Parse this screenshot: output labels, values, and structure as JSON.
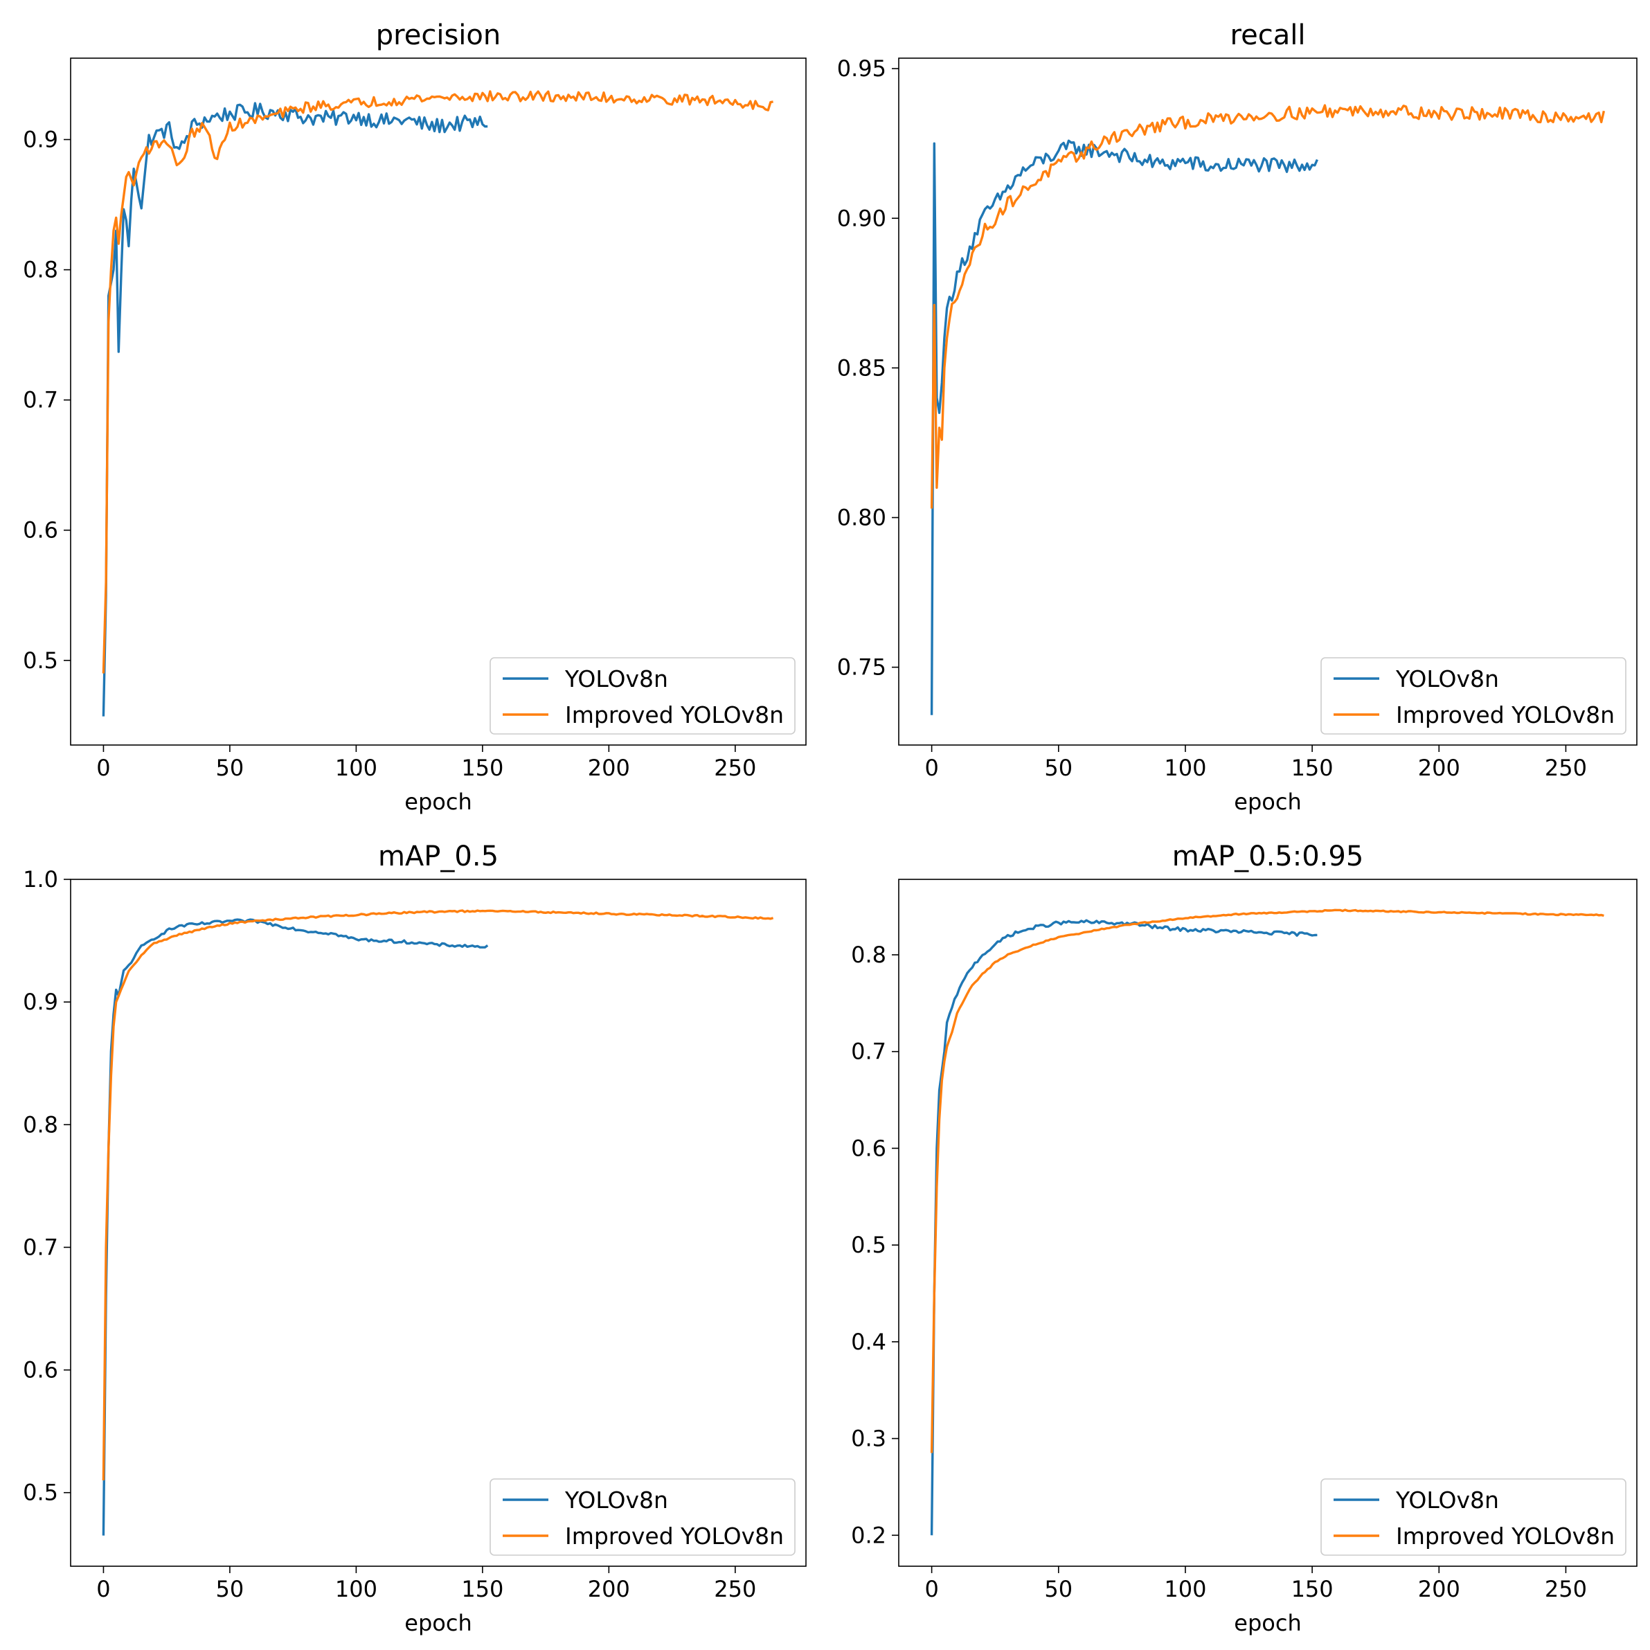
{
  "colors": {
    "yolov8n": "#1f77b4",
    "improved": "#ff7f0e",
    "axes": "#000000",
    "background": "#ffffff"
  },
  "chart_data": [
    {
      "type": "line",
      "title": "precision",
      "xlabel": "epoch",
      "ylabel": "",
      "xlim": [
        -13,
        278
      ],
      "ylim": [
        0.435,
        0.9625
      ],
      "xticks": [
        0,
        50,
        100,
        150,
        200,
        250
      ],
      "xtick_labels": [
        "0",
        "50",
        "100",
        "150",
        "200",
        "250"
      ],
      "yticks": [
        0.5,
        0.6,
        0.7,
        0.8,
        0.9
      ],
      "ytick_labels": [
        "0.5",
        "0.6",
        "0.7",
        "0.8",
        "0.9"
      ],
      "legend": "bottom-right",
      "series": [
        {
          "name": "YOLOv8n",
          "color": "#1f77b4",
          "end_epoch": 152,
          "x": [
            0,
            1,
            2,
            3,
            4,
            5,
            6,
            8,
            10,
            12,
            15,
            18,
            22,
            26,
            30,
            35,
            40,
            45,
            50,
            60,
            70,
            80,
            90,
            100,
            110,
            120,
            130,
            140,
            152
          ],
          "y": [
            0.457,
            0.55,
            0.78,
            0.79,
            0.8,
            0.83,
            0.737,
            0.85,
            0.82,
            0.88,
            0.85,
            0.9,
            0.905,
            0.908,
            0.89,
            0.91,
            0.915,
            0.918,
            0.92,
            0.922,
            0.921,
            0.917,
            0.916,
            0.918,
            0.914,
            0.915,
            0.91,
            0.912,
            0.913
          ],
          "noise": 0.006
        },
        {
          "name": "Improved YOLOv8n",
          "color": "#ff7f0e",
          "end_epoch": 265,
          "x": [
            0,
            1,
            2,
            3,
            4,
            5,
            6,
            8,
            10,
            12,
            15,
            20,
            25,
            30,
            35,
            40,
            45,
            50,
            60,
            70,
            80,
            100,
            120,
            140,
            160,
            180,
            200,
            220,
            240,
            255,
            265
          ],
          "y": [
            0.49,
            0.56,
            0.76,
            0.8,
            0.83,
            0.84,
            0.82,
            0.86,
            0.875,
            0.865,
            0.89,
            0.895,
            0.9,
            0.878,
            0.905,
            0.91,
            0.885,
            0.91,
            0.915,
            0.92,
            0.925,
            0.928,
            0.931,
            0.933,
            0.933,
            0.933,
            0.932,
            0.931,
            0.93,
            0.928,
            0.926
          ],
          "noise": 0.004
        }
      ]
    },
    {
      "type": "line",
      "title": "recall",
      "xlabel": "epoch",
      "ylabel": "",
      "xlim": [
        -13,
        278
      ],
      "ylim": [
        0.724,
        0.9535
      ],
      "xticks": [
        0,
        50,
        100,
        150,
        200,
        250
      ],
      "xtick_labels": [
        "0",
        "50",
        "100",
        "150",
        "200",
        "250"
      ],
      "yticks": [
        0.75,
        0.8,
        0.85,
        0.9,
        0.95
      ],
      "ytick_labels": [
        "0.75",
        "0.80",
        "0.85",
        "0.90",
        "0.95"
      ],
      "legend": "bottom-right",
      "series": [
        {
          "name": "YOLOv8n",
          "color": "#1f77b4",
          "end_epoch": 152,
          "x": [
            0,
            1,
            2,
            3,
            4,
            5,
            6,
            8,
            10,
            12,
            15,
            20,
            25,
            30,
            35,
            40,
            45,
            50,
            55,
            60,
            70,
            80,
            90,
            100,
            110,
            120,
            130,
            140,
            152
          ],
          "y": [
            0.734,
            0.925,
            0.84,
            0.835,
            0.845,
            0.86,
            0.87,
            0.875,
            0.88,
            0.885,
            0.89,
            0.9,
            0.905,
            0.91,
            0.915,
            0.918,
            0.92,
            0.922,
            0.924,
            0.923,
            0.922,
            0.92,
            0.918,
            0.919,
            0.917,
            0.918,
            0.918,
            0.917,
            0.919
          ],
          "noise": 0.0025
        },
        {
          "name": "Improved YOLOv8n",
          "color": "#ff7f0e",
          "end_epoch": 265,
          "x": [
            0,
            1,
            2,
            3,
            4,
            5,
            6,
            8,
            10,
            12,
            15,
            20,
            25,
            30,
            35,
            40,
            45,
            50,
            60,
            70,
            80,
            90,
            100,
            120,
            140,
            160,
            180,
            200,
            220,
            240,
            255,
            265
          ],
          "y": [
            0.803,
            0.871,
            0.81,
            0.83,
            0.826,
            0.85,
            0.86,
            0.87,
            0.875,
            0.88,
            0.885,
            0.895,
            0.9,
            0.905,
            0.908,
            0.912,
            0.915,
            0.918,
            0.922,
            0.927,
            0.929,
            0.931,
            0.932,
            0.934,
            0.935,
            0.936,
            0.936,
            0.935,
            0.935,
            0.934,
            0.934,
            0.934
          ],
          "noise": 0.0022
        }
      ]
    },
    {
      "type": "line",
      "title": "mAP_0.5",
      "xlabel": "epoch",
      "ylabel": "",
      "xlim": [
        -13,
        278
      ],
      "ylim": [
        0.44,
        1.0
      ],
      "xticks": [
        0,
        50,
        100,
        150,
        200,
        250
      ],
      "xtick_labels": [
        "0",
        "50",
        "100",
        "150",
        "200",
        "250"
      ],
      "yticks": [
        0.5,
        0.6,
        0.7,
        0.8,
        0.9,
        1.0
      ],
      "ytick_labels": [
        "0.5",
        "0.6",
        "0.7",
        "0.8",
        "0.9",
        "1.0"
      ],
      "legend": "bottom-right",
      "series": [
        {
          "name": "YOLOv8n",
          "color": "#1f77b4",
          "end_epoch": 152,
          "x": [
            0,
            1,
            2,
            3,
            4,
            5,
            6,
            8,
            10,
            15,
            20,
            25,
            30,
            40,
            50,
            60,
            70,
            80,
            90,
            100,
            110,
            120,
            130,
            140,
            152
          ],
          "y": [
            0.465,
            0.66,
            0.78,
            0.86,
            0.89,
            0.91,
            0.905,
            0.925,
            0.93,
            0.945,
            0.952,
            0.958,
            0.962,
            0.964,
            0.966,
            0.966,
            0.962,
            0.958,
            0.956,
            0.951,
            0.95,
            0.949,
            0.947,
            0.946,
            0.945
          ],
          "noise": 0.0012
        },
        {
          "name": "Improved YOLOv8n",
          "color": "#ff7f0e",
          "end_epoch": 265,
          "x": [
            0,
            1,
            2,
            3,
            4,
            5,
            6,
            8,
            10,
            15,
            20,
            30,
            40,
            50,
            60,
            80,
            100,
            120,
            140,
            160,
            180,
            200,
            220,
            240,
            265
          ],
          "y": [
            0.51,
            0.7,
            0.78,
            0.84,
            0.88,
            0.9,
            0.905,
            0.915,
            0.925,
            0.938,
            0.948,
            0.955,
            0.96,
            0.964,
            0.966,
            0.969,
            0.971,
            0.973,
            0.974,
            0.974,
            0.973,
            0.972,
            0.971,
            0.97,
            0.968
          ],
          "noise": 0.0006
        }
      ]
    },
    {
      "type": "line",
      "title": "mAP_0.5:0.95",
      "xlabel": "epoch",
      "ylabel": "",
      "xlim": [
        -13,
        278
      ],
      "ylim": [
        0.168,
        0.878
      ],
      "xticks": [
        0,
        50,
        100,
        150,
        200,
        250
      ],
      "xtick_labels": [
        "0",
        "50",
        "100",
        "150",
        "200",
        "250"
      ],
      "yticks": [
        0.2,
        0.3,
        0.4,
        0.5,
        0.6,
        0.7,
        0.8
      ],
      "ytick_labels": [
        "0.2",
        "0.3",
        "0.4",
        "0.5",
        "0.6",
        "0.7",
        "0.8"
      ],
      "legend": "bottom-right",
      "series": [
        {
          "name": "YOLOv8n",
          "color": "#1f77b4",
          "end_epoch": 152,
          "x": [
            0,
            1,
            2,
            3,
            4,
            5,
            6,
            8,
            10,
            15,
            20,
            25,
            30,
            40,
            50,
            60,
            70,
            80,
            90,
            100,
            110,
            120,
            130,
            140,
            152
          ],
          "y": [
            0.2,
            0.45,
            0.6,
            0.66,
            0.68,
            0.7,
            0.73,
            0.745,
            0.76,
            0.785,
            0.8,
            0.81,
            0.82,
            0.828,
            0.833,
            0.834,
            0.833,
            0.832,
            0.828,
            0.826,
            0.825,
            0.824,
            0.823,
            0.822,
            0.821
          ],
          "noise": 0.0018
        },
        {
          "name": "Improved YOLOv8n",
          "color": "#ff7f0e",
          "end_epoch": 265,
          "x": [
            0,
            1,
            2,
            3,
            4,
            5,
            6,
            8,
            10,
            15,
            20,
            25,
            30,
            40,
            50,
            60,
            70,
            80,
            90,
            100,
            120,
            140,
            160,
            180,
            200,
            220,
            240,
            265
          ],
          "y": [
            0.285,
            0.45,
            0.56,
            0.63,
            0.67,
            0.69,
            0.705,
            0.72,
            0.74,
            0.765,
            0.78,
            0.792,
            0.8,
            0.81,
            0.818,
            0.823,
            0.828,
            0.832,
            0.835,
            0.838,
            0.842,
            0.844,
            0.846,
            0.845,
            0.844,
            0.843,
            0.842,
            0.841
          ],
          "noise": 0.0006
        }
      ]
    }
  ]
}
